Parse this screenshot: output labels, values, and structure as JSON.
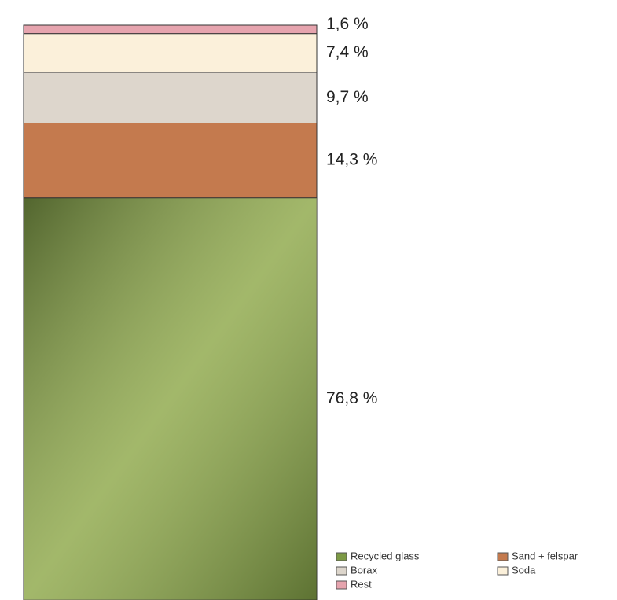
{
  "chart_data": {
    "type": "bar",
    "stacked": true,
    "legend": "bottom-right",
    "series": [
      {
        "name": "Recycled glass",
        "color": "#7d9a45",
        "values": [
          76.8
        ],
        "value_labels": [
          "76,8 %"
        ]
      },
      {
        "name": "Sand + felspar",
        "color": "#c47a4e",
        "values": [
          14.3
        ],
        "value_labels": [
          "14,3 %"
        ]
      },
      {
        "name": "Borax",
        "color": "#ddd6cc",
        "values": [
          9.7
        ],
        "value_labels": [
          "9,7 %"
        ]
      },
      {
        "name": "Soda",
        "color": "#fbf0da",
        "values": [
          7.4
        ],
        "value_labels": [
          "7,4 %"
        ]
      },
      {
        "name": "Rest",
        "color": "#e6a4ae",
        "values": [
          1.6
        ],
        "value_labels": [
          "1,6 %"
        ]
      }
    ]
  }
}
